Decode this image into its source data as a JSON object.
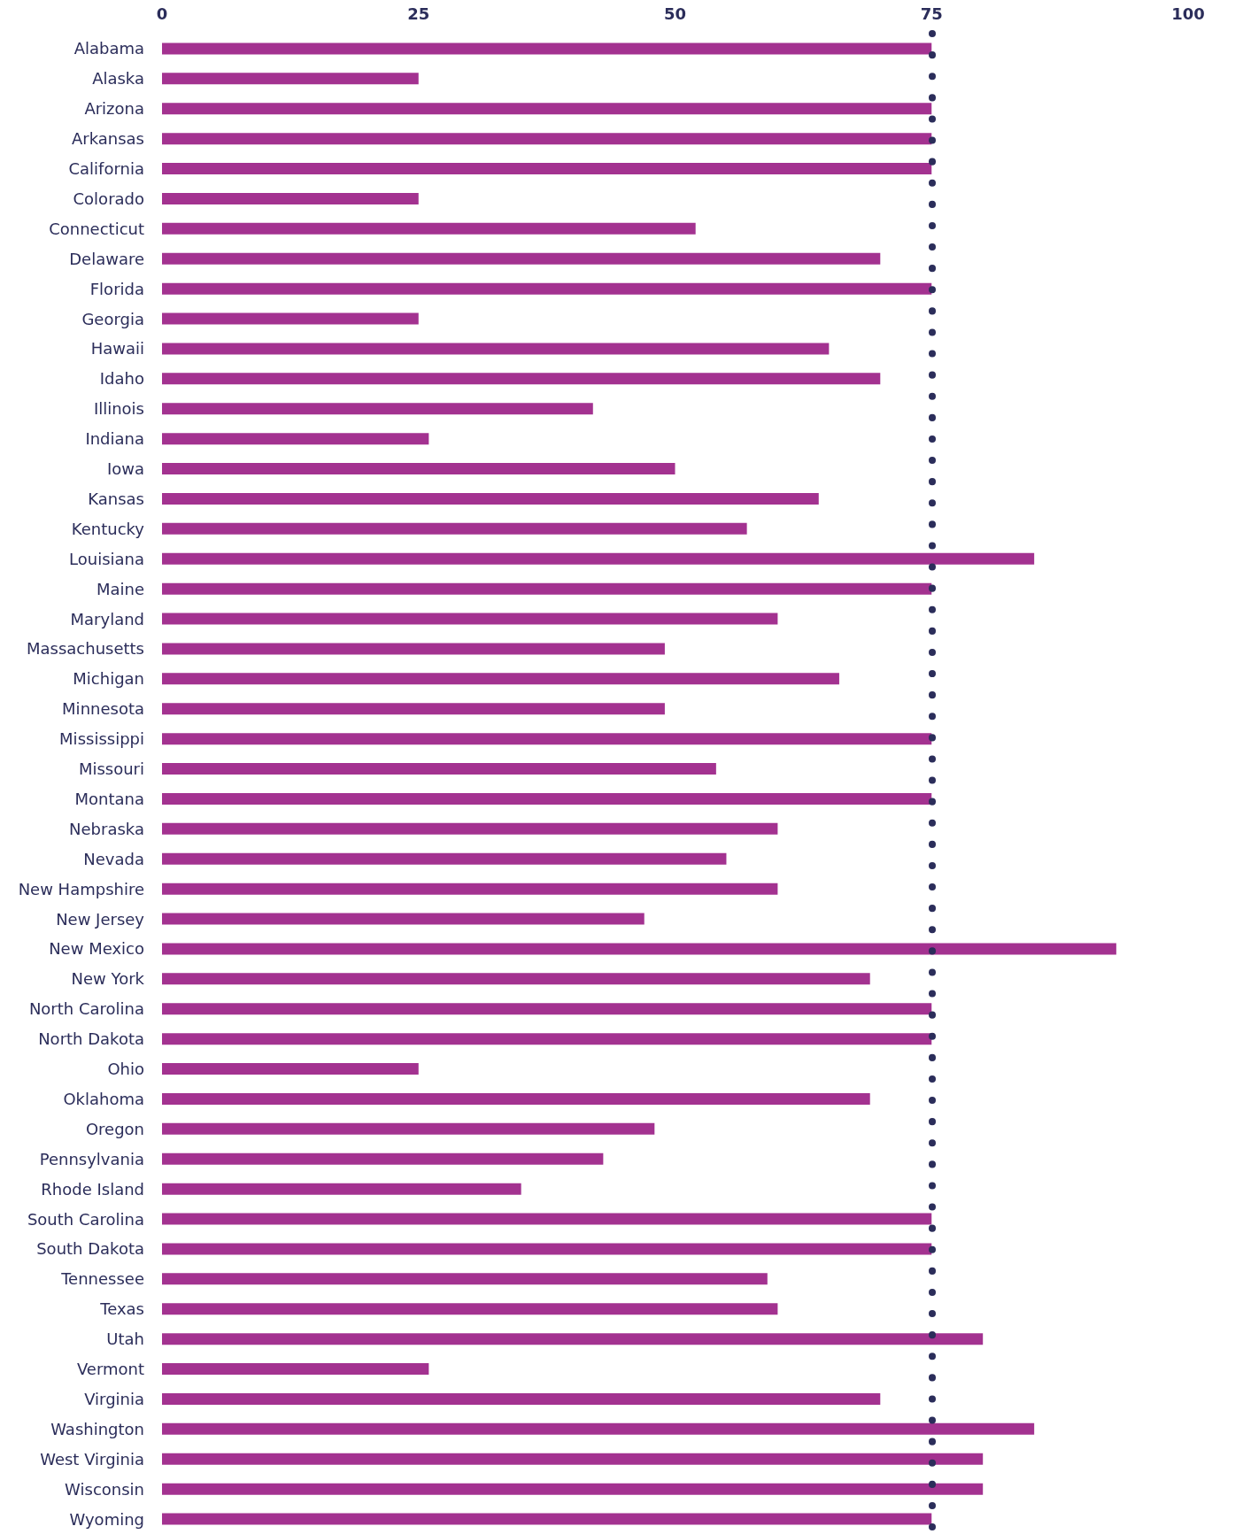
{
  "chart_data": {
    "type": "bar",
    "orientation": "horizontal",
    "categories": [
      "Alabama",
      "Alaska",
      "Arizona",
      "Arkansas",
      "California",
      "Colorado",
      "Connecticut",
      "Delaware",
      "Florida",
      "Georgia",
      "Hawaii",
      "Idaho",
      "Illinois",
      "Indiana",
      "Iowa",
      "Kansas",
      "Kentucky",
      "Louisiana",
      "Maine",
      "Maryland",
      "Massachusetts",
      "Michigan",
      "Minnesota",
      "Mississippi",
      "Missouri",
      "Montana",
      "Nebraska",
      "Nevada",
      "New Hampshire",
      "New Jersey",
      "New Mexico",
      "New York",
      "North Carolina",
      "North Dakota",
      "Ohio",
      "Oklahoma",
      "Oregon",
      "Pennsylvania",
      "Rhode Island",
      "South Carolina",
      "South Dakota",
      "Tennessee",
      "Texas",
      "Utah",
      "Vermont",
      "Virginia",
      "Washington",
      "West Virginia",
      "Wisconsin",
      "Wyoming"
    ],
    "values": [
      75,
      25,
      75,
      75,
      75,
      25,
      52,
      70,
      75,
      25,
      65,
      70,
      42,
      26,
      50,
      64,
      57,
      85,
      75,
      60,
      49,
      66,
      49,
      75,
      54,
      75,
      60,
      55,
      60,
      47,
      93,
      69,
      75,
      75,
      25,
      69,
      48,
      43,
      35,
      75,
      75,
      59,
      60,
      80,
      26,
      70,
      85,
      80,
      80,
      75
    ],
    "color": "#a33290",
    "xlim": [
      0,
      100
    ],
    "xticks": [
      0,
      25,
      50,
      75,
      100
    ],
    "ref_lines": [
      {
        "axis": "x",
        "value": 75,
        "color": "#2b2d5a",
        "line_style": "dotted"
      }
    ]
  }
}
